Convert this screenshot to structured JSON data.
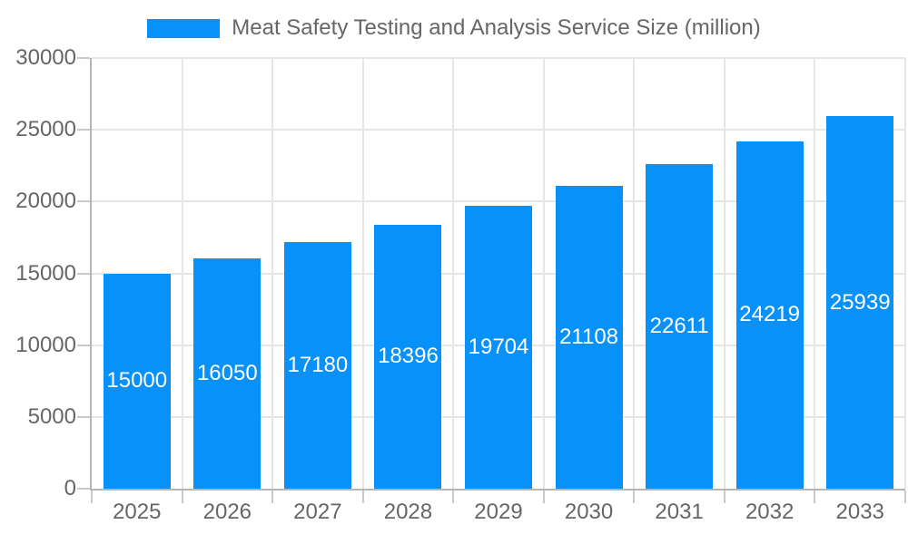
{
  "legend": {
    "label": "Meat Safety Testing and Analysis Service Size (million)"
  },
  "chart_data": {
    "type": "bar",
    "title": "Meat Safety Testing and Analysis Service Size (million)",
    "categories": [
      "2025",
      "2026",
      "2027",
      "2028",
      "2029",
      "2030",
      "2031",
      "2032",
      "2033"
    ],
    "values": [
      15000,
      16050,
      17180,
      18396,
      19704,
      21108,
      22611,
      24219,
      25939
    ],
    "xlabel": "",
    "ylabel": "",
    "ylim": [
      0,
      30000
    ],
    "yticks": [
      0,
      5000,
      10000,
      15000,
      20000,
      25000,
      30000
    ],
    "grid": true,
    "legend_position": "top",
    "value_labels_position": "inside-center"
  },
  "colors": {
    "bar": "#0991fa",
    "label_text": "#666666",
    "value_label_text": "#ffffff",
    "grid_line": "#e6e6e6",
    "axis_line": "#b5b5b5",
    "tick_mark": "#c9c9c9",
    "background": "#ffffff"
  }
}
